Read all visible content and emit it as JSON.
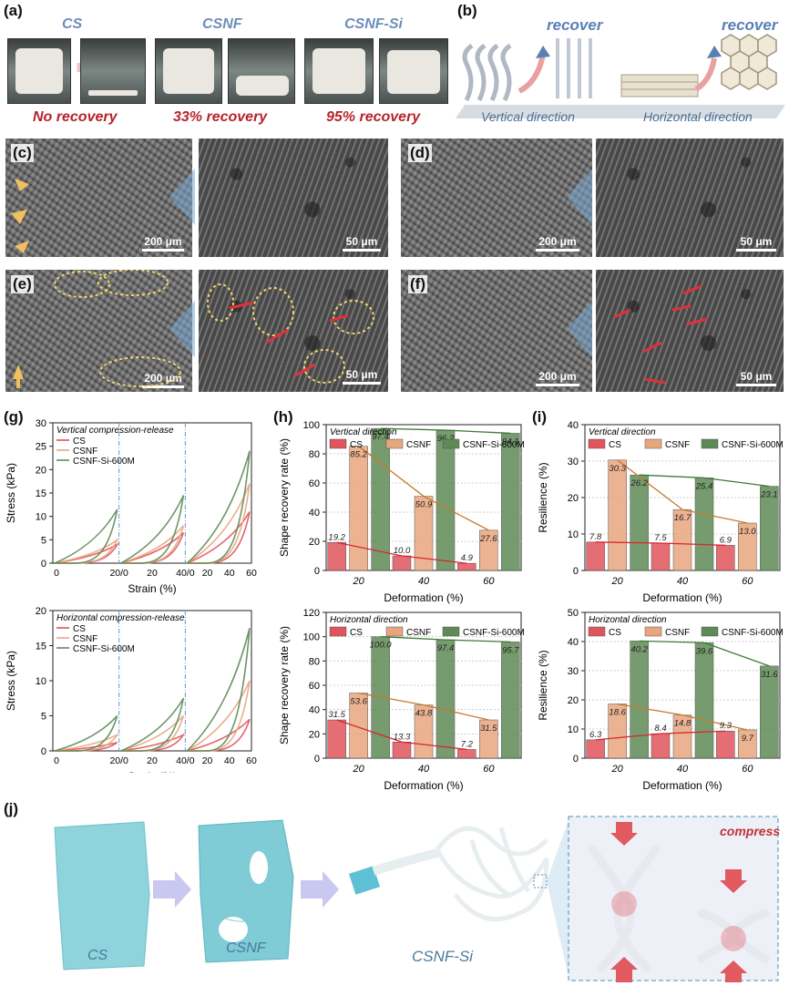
{
  "panel_labels": {
    "a": "(a)",
    "b": "(b)",
    "c": "(c)",
    "d": "(d)",
    "e": "(e)",
    "f": "(f)",
    "g": "(g)",
    "h": "(h)",
    "i": "(i)",
    "j": "(j)"
  },
  "panel_a": {
    "samples": [
      "CS",
      "CSNF",
      "CSNF-Si"
    ],
    "recovery": [
      "No recovery",
      "33% recovery",
      "95% recovery"
    ]
  },
  "panel_b": {
    "recover_1": "recover",
    "recover_2": "recover",
    "dir_vertical": "Vertical direction",
    "dir_horizontal": "Horizontal direction"
  },
  "sem_scale": {
    "s200": "200 μm",
    "s50": "50 μm"
  },
  "panel_g": {
    "top_title": "Vertical compression-release",
    "bottom_title": "Horizontal compression-release",
    "legend": [
      "CS",
      "CSNF",
      "CSNF-Si-600M"
    ],
    "ylabel": "Stress (kPa)",
    "xlabel": "Strain (%)",
    "top_yticks": [
      "0",
      "5",
      "10",
      "15",
      "20",
      "25",
      "30"
    ],
    "bottom_yticks": [
      "0",
      "5",
      "10",
      "15",
      "20"
    ],
    "xticks": [
      "0",
      "20/0",
      "20",
      "40/0",
      "20",
      "40",
      "60"
    ]
  },
  "chart_data": [
    {
      "type": "bar",
      "title": "Vertical direction",
      "ylabel": "Shape recovery rate (%)",
      "xlabel": "Deformation (%)",
      "categories": [
        "20",
        "40",
        "60"
      ],
      "ylim": [
        0,
        100
      ],
      "yticks": [
        "0",
        "20",
        "40",
        "60",
        "80",
        "100"
      ],
      "series": [
        {
          "name": "CS",
          "values": [
            19.2,
            10.0,
            4.9
          ],
          "labels": [
            "19.2",
            "10.0",
            "4.9"
          ]
        },
        {
          "name": "CSNF",
          "values": [
            85.2,
            50.9,
            27.6
          ],
          "labels": [
            "85.2",
            "50.9",
            "27.6"
          ]
        },
        {
          "name": "CSNF-Si-600M",
          "values": [
            97.4,
            96.2,
            94.1
          ],
          "labels": [
            "97.4",
            "96.2",
            "94.1"
          ]
        }
      ]
    },
    {
      "type": "bar",
      "title": "Horizontal direction",
      "ylabel": "Shape recovery rate (%)",
      "xlabel": "Deformation (%)",
      "categories": [
        "20",
        "40",
        "60"
      ],
      "ylim": [
        0,
        120
      ],
      "yticks": [
        "0",
        "20",
        "40",
        "60",
        "80",
        "100",
        "120"
      ],
      "series": [
        {
          "name": "CS",
          "values": [
            31.5,
            13.3,
            7.2
          ],
          "labels": [
            "31.5",
            "13.3",
            "7.2"
          ]
        },
        {
          "name": "CSNF",
          "values": [
            53.6,
            43.8,
            31.5
          ],
          "labels": [
            "53.6",
            "43.8",
            "31.5"
          ]
        },
        {
          "name": "CSNF-Si-600M",
          "values": [
            100.0,
            97.4,
            95.7
          ],
          "labels": [
            "100.0",
            "97.4",
            "95.7"
          ]
        }
      ]
    },
    {
      "type": "bar",
      "title": "Vertical direction",
      "ylabel": "Resilience  (%)",
      "xlabel": "Deformation (%)",
      "categories": [
        "20",
        "40",
        "60"
      ],
      "ylim": [
        0,
        40
      ],
      "yticks": [
        "0",
        "10",
        "20",
        "30",
        "40"
      ],
      "series": [
        {
          "name": "CS",
          "values": [
            7.8,
            7.5,
            6.9
          ],
          "labels": [
            "7.8",
            "7.5",
            "6.9"
          ]
        },
        {
          "name": "CSNF",
          "values": [
            30.3,
            16.7,
            13.0
          ],
          "labels": [
            "30.3",
            "16.7",
            "13.0"
          ]
        },
        {
          "name": "CSNF-Si-600M",
          "values": [
            26.2,
            25.4,
            23.1
          ],
          "labels": [
            "26.2",
            "25.4",
            "23.1"
          ]
        }
      ]
    },
    {
      "type": "bar",
      "title": "Horizontal direction",
      "ylabel": "Resilience  (%)",
      "xlabel": "Deformation (%)",
      "categories": [
        "20",
        "40",
        "60"
      ],
      "ylim": [
        0,
        50
      ],
      "yticks": [
        "0",
        "10",
        "20",
        "30",
        "40",
        "50"
      ],
      "series": [
        {
          "name": "CS",
          "values": [
            6.3,
            8.4,
            9.3
          ],
          "labels": [
            "6.3",
            "8.4",
            "9.3"
          ]
        },
        {
          "name": "CSNF",
          "values": [
            18.6,
            14.8,
            9.7
          ],
          "labels": [
            "18.6",
            "14.8",
            "9.7"
          ]
        },
        {
          "name": "CSNF-Si-600M",
          "values": [
            40.2,
            39.6,
            31.6
          ],
          "labels": [
            "40.2",
            "39.6",
            "31.6"
          ]
        }
      ]
    }
  ],
  "colors": {
    "cs": "#e0545c",
    "csnf": "#e8a67e",
    "si": "#5e8a56"
  },
  "panel_j": {
    "cs": "CS",
    "csnf": "CSNF",
    "si": "CSNF-Si",
    "compress": "compress"
  }
}
